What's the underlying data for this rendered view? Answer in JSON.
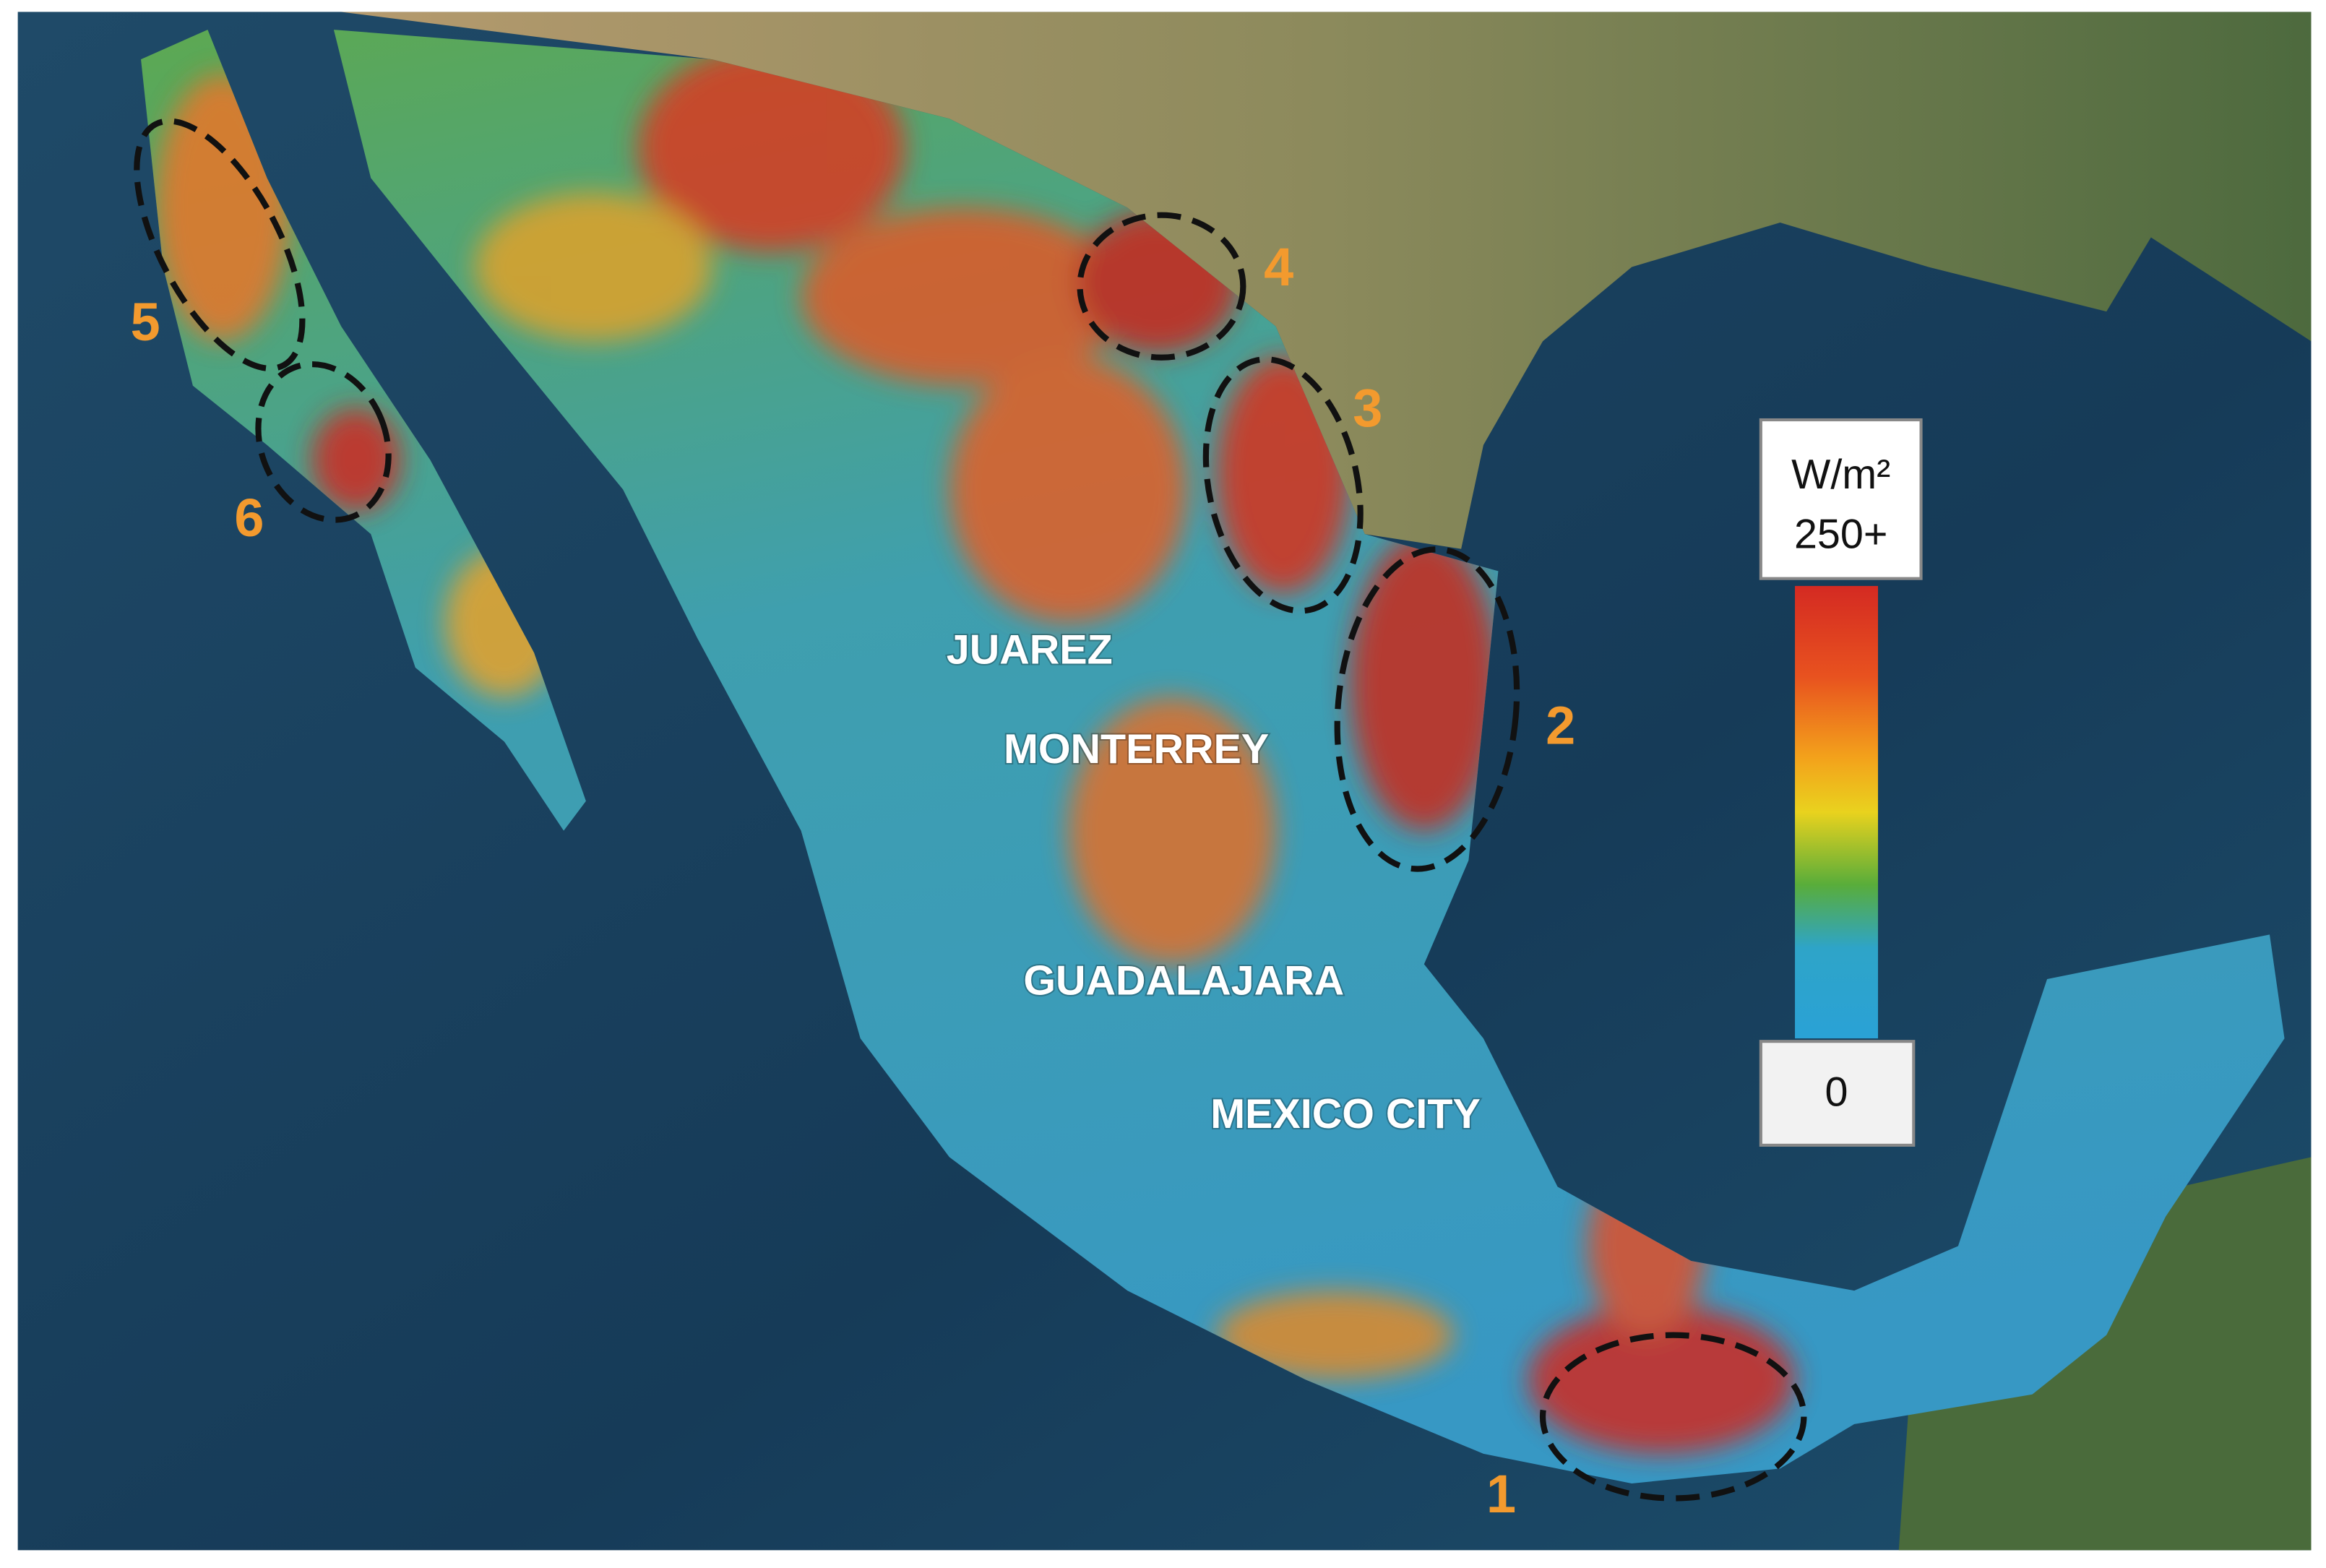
{
  "map": {
    "cities": [
      "JUAREZ",
      "MONTERREY",
      "GUADALAJARA",
      "MEXICO CITY"
    ],
    "regions": [
      "1",
      "2",
      "3",
      "4",
      "5",
      "6"
    ],
    "legend": {
      "unit": "W/m²",
      "max_label": "250+",
      "min_label": "0"
    }
  }
}
